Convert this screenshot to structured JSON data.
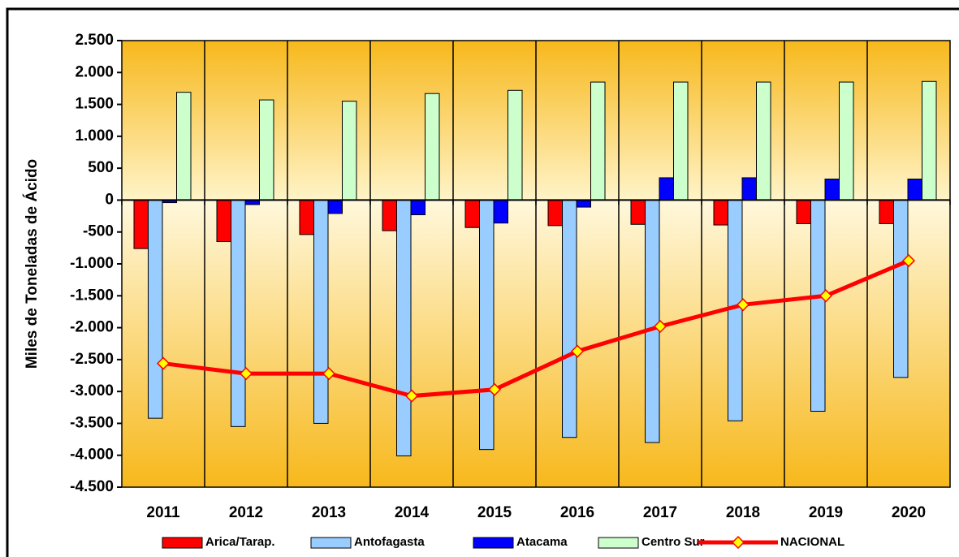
{
  "chart_data": {
    "type": "bar",
    "y_label": "Miles de Toneladas de Ácido",
    "categories": [
      "2011",
      "2012",
      "2013",
      "2014",
      "2015",
      "2016",
      "2017",
      "2018",
      "2019",
      "2020"
    ],
    "series": [
      {
        "name": "Arica/Tarap.",
        "color": "#ff0000",
        "values": [
          -760,
          -650,
          -540,
          -480,
          -430,
          -400,
          -380,
          -390,
          -370,
          -370
        ]
      },
      {
        "name": "Antofagasta",
        "color": "#99ccff",
        "values": [
          -3420,
          -3550,
          -3500,
          -4010,
          -3910,
          -3720,
          -3800,
          -3460,
          -3310,
          -2780
        ]
      },
      {
        "name": "Atacama",
        "color": "#0000ff",
        "values": [
          -40,
          -70,
          -210,
          -230,
          -360,
          -110,
          350,
          350,
          330,
          330
        ]
      },
      {
        "name": "Centro Sur",
        "color": "#ccffcc",
        "values": [
          1690,
          1570,
          1550,
          1670,
          1720,
          1850,
          1850,
          1850,
          1850,
          1860
        ]
      },
      {
        "name": "NACIONAL",
        "type": "line",
        "color": "#ff0000",
        "marker_color": "#ffff00",
        "values": [
          -2560,
          -2720,
          -2720,
          -3070,
          -2970,
          -2370,
          -1980,
          -1640,
          -1500,
          -950
        ]
      }
    ],
    "ylim": [
      -4500,
      2500
    ],
    "yticks": [
      {
        "value": -4500,
        "label": "-4.500"
      },
      {
        "value": -4000,
        "label": "-4.000"
      },
      {
        "value": -3500,
        "label": "-3.500"
      },
      {
        "value": -3000,
        "label": "-3.000"
      },
      {
        "value": -2500,
        "label": "-2.500"
      },
      {
        "value": -2000,
        "label": "-2.000"
      },
      {
        "value": -1500,
        "label": "-1.500"
      },
      {
        "value": -1000,
        "label": "-1.000"
      },
      -500,
      0,
      500,
      {
        "value": 1000,
        "label": "1.000"
      },
      {
        "value": 1500,
        "label": "1.500"
      },
      {
        "value": 2000,
        "label": "2.000"
      },
      {
        "value": 2500,
        "label": "2.500"
      }
    ],
    "legend": "bottom"
  }
}
